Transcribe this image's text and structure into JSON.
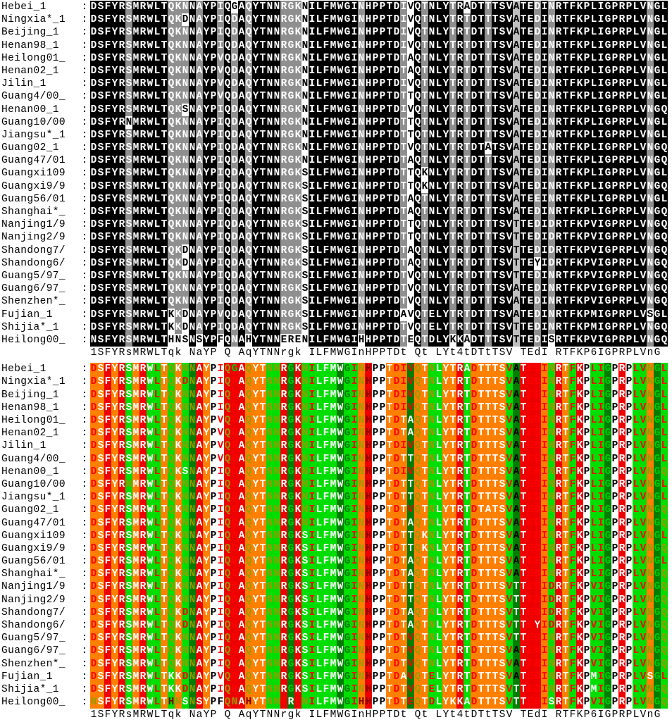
{
  "alignment": {
    "names": [
      "Hebei_1",
      "Ningxia*_1",
      "Beijing_1",
      "Henan98_1",
      "Heilong01_",
      "Henan02_1",
      "Jilin_1",
      "Guang4/00_",
      "Henan00_1",
      "Guang10/00",
      "Jiangsu*_1",
      "Guang02_1",
      "Guang47/01",
      "Guangxi109",
      "Guangxi9/9",
      "Guang56/01",
      "Shanghai*_",
      "Nanjing1/9",
      "Nanjing2/9",
      "Shandong7/",
      "Shandong6/",
      "Guang5/97_",
      "Guang6/97_",
      "Shenzhen*_",
      "Fujian_1",
      "Shijia*_1",
      "Heilong00_"
    ],
    "separator": ":",
    "sequences": [
      "DSFYRSMRWLTQKNNAYPIQGAQYTNNRGKNILFMWGINHPPTDIVQTNLYTRADTTTSVATEDINRTFKPLIGPRPLVNGL",
      "DSFYRSMRWLTQKDNAYPIQDAQYTNNRGKNILFMWGINHPPTDIVQTNLYTRTDTTTSVATEDINRTFKPLIGPRPLVNGL",
      "DSFYRSMRWLTQKNNAYPIQDAQYTNNRGKNILFMWGINHPPTDIVQTNLYTRTDTTTSVATEDINRTFKPLIGPRPLVNGL",
      "DSFYRSMRWLTQKNNAYPIQDAQYTNNRGKNILFMWGINHPPTDIVQTNLYTRTDTTTSVATEDINRTFKPLIGPRPLVNGL",
      "DSFYRSMRWLTQKNNAYPVQDAQYTNNRGKNILFMWGINHPPTDTAQTNLYTRTDTTTSVATEDINRTFKPLIGPRPLVNGL",
      "DSFYRSMRWLTQKNNAYPVQDAQYTNNRGKNILFMWGINHPPTDTAQTNLYTRTDTTTSVATEDINRTFKPLIGPRPLVNGL",
      "DSFYRSMRWLTQKNNAYPVQDAQYTNNRGKNILFMWGINHPPTDIVQTNLYTRTDTTTSVATEDINRTFKPLIGPRPLVNGL",
      "DSFYRSMRWLTQKNNAYPVQDAQYTNNRGKNILFMWGINHPPTDTTQTNLYTRTDTTTSVATEDINRTFKPLIGPRPLVNGL",
      "DSFYRSMRWLTQKSNAYPIQDAQYTNNRGKNILFMWGINHPPTDIVQTNLYTRTDTTTSVATEDINRTFKPLIGPRPLVNGQ",
      "DSFYRNMRWLTQKNNAYPIQDAQYTNNRGKNILFMWGINHPPTDTTQTNLYTRTDTTTSVATEDINRTFKPLIGPRPLVNGL",
      "DSFYRSMRWLTQKNNAYPIQDAQYTNNRGKNILFMWGINHPPTDTTQTNLYTRTDTTTSVATEDINRTFKPLIGPRPLVNGL",
      "DSFYRSMRWLTQKNNAYPIQDAQYTNNRGKNILFMWGINHPPTDTVQTNLYTRTDTATSVATEDINRTFKPLIGPRPLVNGQ",
      "DSFYRSMRWLTQKNNAYPIQDAQYTNNRGKNILFMWGINHPPTDTAQTNLYTRTDTTTSVATEDINRTFKPLIGPRPLVNGQ",
      "DSFYRSMRWLTQKNNAYPIQDAQYTNNRGKSILFMWGINHPPTDTTQKNLYTRTDTTTSVATEDINRTFKPLIGPRPLVNGL",
      "DSFYRSMRWLTQKNNAYPIQDAQYTNNRGKSILFMWGINHPPTDTTQKNLYTRTDTTTSVATEDINRTFKPLIGPRPLVNGQ",
      "DSFYRSMRWLTQKNNAYPIQDAQYTNNRGKSILFMWGINHPPTDTAQTNLYTRTDTTTSVATEEINRTFKPLIGPRPLVNGL",
      "DSFYRSMRWLTQKNNAYPIQDAQYTNNRGKSILFMWGINHPPTDTAQTNLYTRTDTTTSVATEDINRTFKPLIGPRPLVNGQ",
      "DSFYRSMRWLTQKNNAYPIQDAQYTNNRGKSILFMWGINHPPTDTTQTNLYTRTDTTTSVTTEDIDRTFKPVIGPRPLVNGQ",
      "DSFYRSMRWLTQKNNAYPIQDAQYTNNRGKSILFMWGINHPPTDTTQTNLYTRTDTTTSVTTEDIDRTFKPVIGPRPLVNGQ",
      "DSFYRSMRWLTQKDNAYPIQDAQYTNNRGKSILFMWGINHPPTDTAQTNLYTRTDTTTSVTTEDIDRTFKPVIGPRPLVNGQ",
      "DSFYRSMRWLTQKDNAYPIQDAQYTNNRGKSILFMWGINHPPTDTAQTNLYTRTDTTTSVTTEYIDRTFKPVIGPRPLVNGQ",
      "DSFYRSMRWLTQKNNAYPIQDAQYTNNRGKSILFMWGINHPPTDTVQTNLYTRTDTTTSVTTEDINRTFKPVIGPRPLVNGQ",
      "DSFYRSMRWLTQKNNAYPIQDAQYTNNRGKSILFMWGINHPPTDTVQTNLYTRTDTTTSVATEDINRTFKPVIGPRPLVNGQ",
      "DSFYRSMRWLTQKNNAYPIQDAQYTNNRGKSILFMWGINHPPTDTVQTNLYTRTDTTTSVATEDINRTFKPVIGPRPLVNGQ",
      "DSFYRSMRWLTKKDNAYPVQDAQYTNNRGKSILFMWGINHPPTDAVQTELYTRTDTTTSVATEDINRTFKPMIGPRPLVSGL",
      "DSFYRSMRWLTKKDNAYPIQDAQYTNNRGKSILFMWGINHPPTDTVQTELYTRTDTTTSVTTEDINRTFKPMIGPRPLVNGQ",
      "NSFYRSMRWLTHNSNSYPFQNAHYTNNERENILFMWGIHHPPTDTEQTDLYKKADTTTSVTTEDISRTFKPVIGPRPLVNGQ"
    ],
    "consensus": "1SFYRsMRWLTqk NaYP Q AqYTNNrgk ILFMWGInHPPTDt Qt LYt4tDTtTSV TEdI RTFKP6IGPRPLVnG ",
    "col_shading": [
      "B",
      "B",
      "B",
      "B",
      "B",
      "G:S",
      "B",
      "B",
      "B",
      "B",
      "B",
      "G:Q",
      "G:K",
      "G:N",
      "B",
      "G:A",
      "B",
      "B",
      "G:IV",
      "B",
      "G:DN",
      "B",
      "G:Q",
      "B",
      "B",
      "B",
      "B",
      "G:R",
      "G:G",
      "G:K",
      "W",
      "B",
      "B",
      "B",
      "B",
      "B",
      "B",
      "B",
      "G:N",
      "B",
      "B",
      "B",
      "B",
      "B",
      "G:TI",
      "W",
      "B",
      "G:T",
      "B",
      "B",
      "B",
      "G:T",
      "B",
      "G:T",
      "B",
      "B",
      "G:T",
      "B",
      "B",
      "B",
      "L:AT",
      "B",
      "B",
      "G:DE",
      "B",
      "G:ND",
      "B",
      "B",
      "B",
      "B",
      "B",
      "B",
      "B",
      "B",
      "B",
      "B",
      "B",
      "B",
      "B",
      "G:N",
      "B",
      "B"
    ],
    "shading_colors": {
      "B_bg": "#000000",
      "B_tx": "#ffffff",
      "G_bg": "#8f8f8f",
      "G_tx": "#ffffff",
      "L_bg": "#bfbfbf",
      "L_tx": "#000000",
      "W_bg": "#ffffff",
      "W_tx": "#000000"
    },
    "bottom_bg": "oororgorggogogdrowwrrroooggrdrgggggdggorwwooodooggoorgooooogdrrrogrogrwggdwrwggodg",
    "bottom_tx": "rwwwwwwwwrwvwvvwwkrvrwvwwvvwGwvrwwwwervhkkwrwrvwvwwwwwrwwwwrkwrrrvwwrwkrrGkwkrrvGv",
    "bg_palette": {
      "o": "#ff8000",
      "r": "#ee0000",
      "g": "#00dd00",
      "d": "#007d00",
      "w": "#ffffff"
    },
    "tx_palette": {
      "w": "#ffffff",
      "r": "#ff0000",
      "v": "#999900",
      "G": "#00cc00",
      "k": "#000000",
      "h": "#8b0000",
      "e": "#007700"
    },
    "minority_tx": {
      "D": "r",
      "E": "r",
      "I": "r",
      "V": "r",
      "L": "r",
      "M": "w",
      "N": "v",
      "Q": "v",
      "G": "G",
      "P": "k",
      "H": "h",
      "F": "k",
      "S": "w",
      "T": "w",
      "A": "w",
      "K": "w",
      "R": "w",
      "Y": "w",
      "W": "w",
      "C": "w"
    }
  }
}
